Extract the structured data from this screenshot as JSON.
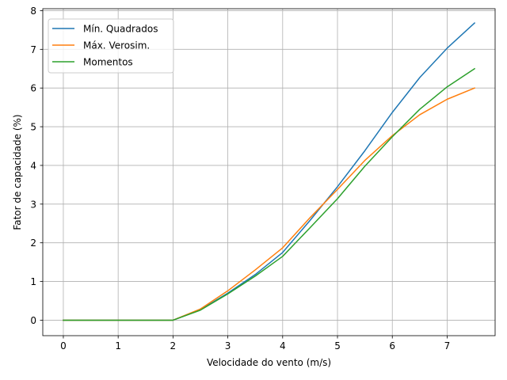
{
  "chart_data": {
    "type": "line",
    "title": "",
    "xlabel": "Velocidade do vento (m/s)",
    "ylabel": "Fator de capacidade (%)",
    "xlim": [
      -0.375,
      7.875
    ],
    "ylim": [
      -0.4,
      8.05
    ],
    "xticks": [
      0,
      1,
      2,
      3,
      4,
      5,
      6,
      7
    ],
    "yticks": [
      0,
      1,
      2,
      3,
      4,
      5,
      6,
      7,
      8
    ],
    "grid": true,
    "legend_position": "top-left",
    "x": [
      0,
      0.5,
      1,
      1.5,
      2,
      2.5,
      3,
      3.5,
      4,
      4.5,
      5,
      5.5,
      6,
      6.5,
      7,
      7.5
    ],
    "series": [
      {
        "name": "Mín. Quadrados",
        "color": "#1f77b4",
        "values": [
          0,
          0,
          0,
          0,
          0,
          0.27,
          0.7,
          1.18,
          1.75,
          2.58,
          3.45,
          4.38,
          5.37,
          6.27,
          7.03,
          7.68
        ]
      },
      {
        "name": "Máx. Verosim.",
        "color": "#ff7f0e",
        "values": [
          0,
          0,
          0,
          0,
          0,
          0.29,
          0.76,
          1.3,
          1.87,
          2.65,
          3.38,
          4.13,
          4.77,
          5.31,
          5.71,
          6.0
        ]
      },
      {
        "name": "Momentos",
        "color": "#2ca02c",
        "values": [
          0,
          0,
          0,
          0,
          0,
          0.26,
          0.68,
          1.14,
          1.65,
          2.39,
          3.14,
          3.98,
          4.74,
          5.45,
          6.03,
          6.5
        ]
      }
    ]
  }
}
